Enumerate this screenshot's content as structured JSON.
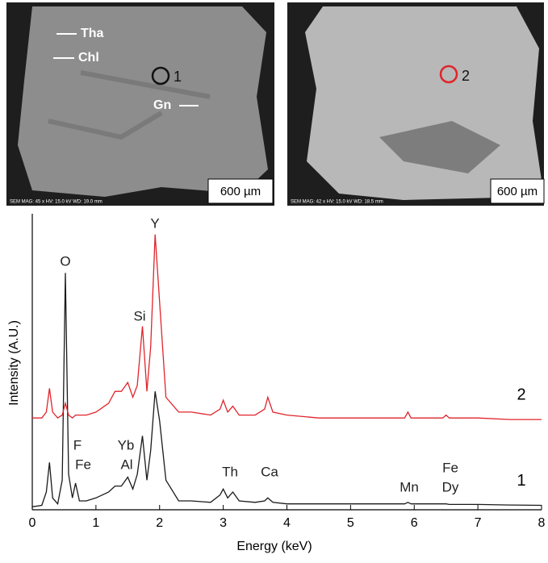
{
  "images": [
    {
      "labels": [
        "Tha",
        "Chl",
        "1",
        "Gn"
      ],
      "scale_bar": "600 µm",
      "footer": "SEM  MAG: 45 x  HV: 15.0 kV  WD: 19.0 mm"
    },
    {
      "labels": [
        "2"
      ],
      "scale_bar": "600 µm",
      "footer": "SEM  MAG: 42 x  HV: 15.0 kV  WD: 18.5 mm"
    }
  ],
  "chart_data": {
    "type": "line",
    "x_label": "Energy (keV)",
    "y_label": "Intensity (A.U.)",
    "xlim": [
      0,
      8
    ],
    "xticks": [
      0,
      1,
      2,
      3,
      4,
      5,
      6,
      7,
      8
    ],
    "ylim": [
      0,
      100
    ],
    "annotations": [
      "O",
      "Y",
      "Si",
      "F",
      "Fe",
      "Yb",
      "Al",
      "Th",
      "Ca",
      "Mn",
      "Fe",
      "Dy"
    ],
    "x": [
      0,
      0.15,
      0.22,
      0.27,
      0.32,
      0.4,
      0.47,
      0.52,
      0.57,
      0.63,
      0.68,
      0.74,
      0.85,
      1.0,
      1.2,
      1.3,
      1.4,
      1.5,
      1.58,
      1.65,
      1.73,
      1.8,
      1.86,
      1.93,
      2.0,
      2.1,
      2.3,
      2.5,
      2.8,
      2.95,
      3.0,
      3.07,
      3.15,
      3.25,
      3.5,
      3.65,
      3.7,
      3.78,
      4.0,
      4.5,
      5.0,
      5.5,
      5.85,
      5.9,
      5.95,
      6.2,
      6.45,
      6.5,
      6.55,
      7.0,
      7.5,
      8.0
    ],
    "series": [
      {
        "name": "1",
        "color": "#1a1a1a",
        "values": [
          1,
          1.5,
          6,
          16,
          4,
          2,
          10,
          80,
          12,
          4,
          9,
          3,
          3,
          4,
          6,
          8,
          8,
          11,
          7,
          12,
          25,
          10,
          20,
          40,
          30,
          10,
          3,
          3,
          2.5,
          5,
          7,
          4,
          6,
          3,
          2.5,
          3,
          4,
          2.5,
          2,
          2,
          2,
          2,
          2,
          2.5,
          2,
          2,
          2,
          2,
          1.8,
          1.8,
          1.6,
          1.5
        ]
      },
      {
        "name": "2",
        "color": "#e0242b",
        "values": [
          31,
          31,
          33,
          41,
          33,
          31,
          32,
          36,
          32,
          31,
          32,
          32,
          32,
          33,
          36,
          40,
          40,
          43,
          38,
          42,
          62,
          40,
          55,
          93,
          70,
          38,
          33,
          33,
          32,
          34,
          37,
          33,
          35,
          32,
          32,
          34,
          38,
          33,
          32,
          31,
          31,
          31,
          31,
          33,
          31,
          31,
          31,
          32,
          31,
          31,
          30.5,
          30.5
        ]
      }
    ]
  }
}
